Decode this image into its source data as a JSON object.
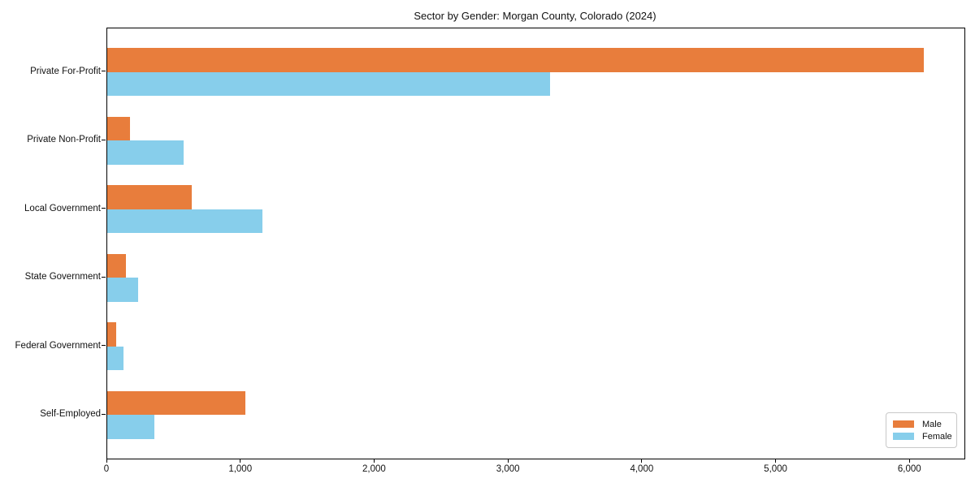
{
  "chart_data": {
    "type": "bar",
    "orientation": "horizontal",
    "title": "Sector by Gender: Morgan County, Colorado (2024)",
    "categories": [
      "Private For-Profit",
      "Private Non-Profit",
      "Local Government",
      "State Government",
      "Federal Government",
      "Self-Employed"
    ],
    "series": [
      {
        "name": "Male",
        "color": "#e87d3c",
        "values": [
          6100,
          170,
          630,
          140,
          65,
          1030
        ]
      },
      {
        "name": "Female",
        "color": "#87ceeb",
        "values": [
          3310,
          570,
          1160,
          230,
          120,
          350
        ]
      }
    ],
    "xlabel": "",
    "ylabel": "",
    "xlim": [
      0,
      6405
    ],
    "xticks": [
      0,
      1000,
      2000,
      3000,
      4000,
      5000,
      6000
    ],
    "xtick_labels": [
      "0",
      "1,000",
      "2,000",
      "3,000",
      "4,000",
      "5,000",
      "6,000"
    ],
    "legend": {
      "position": "lower right",
      "entries": [
        "Male",
        "Female"
      ]
    },
    "grid": false,
    "axis_color": "#000000",
    "background": "#ffffff"
  }
}
